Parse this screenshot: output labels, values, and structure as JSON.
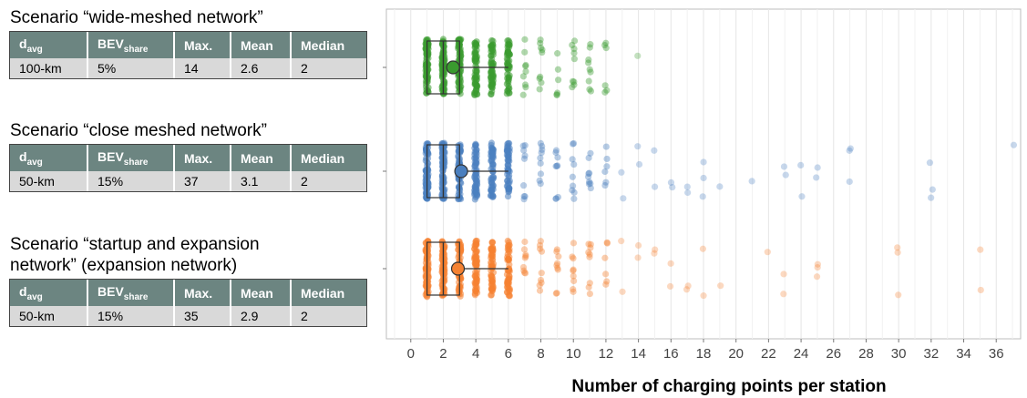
{
  "scenarios": [
    {
      "title": "Scenario “wide-meshed network”",
      "headers": {
        "d": "d",
        "d_sub": "avg",
        "bev": "BEV",
        "bev_sub": "share",
        "max": "Max.",
        "mean": "Mean",
        "median": "Median"
      },
      "row": {
        "d": "100-km",
        "bev": "5%",
        "max": "14",
        "mean": "2.6",
        "median": "2"
      }
    },
    {
      "title": "Scenario “close meshed network”",
      "headers": {
        "d": "d",
        "d_sub": "avg",
        "bev": "BEV",
        "bev_sub": "share",
        "max": "Max.",
        "mean": "Mean",
        "median": "Median"
      },
      "row": {
        "d": "50-km",
        "bev": "15%",
        "max": "37",
        "mean": "3.1",
        "median": "2"
      }
    },
    {
      "title": "Scenario “startup and expansion\nnetwork” (expansion network)",
      "headers": {
        "d": "d",
        "d_sub": "avg",
        "bev": "BEV",
        "bev_sub": "share",
        "max": "Max.",
        "mean": "Mean",
        "median": "Median"
      },
      "row": {
        "d": "50-km",
        "bev": "15%",
        "max": "35",
        "mean": "2.9",
        "median": "2"
      }
    }
  ],
  "chart_data": {
    "type": "scatter",
    "xlabel": "Number of charging points per station",
    "ylabel": "",
    "xlim": [
      -1.5,
      37.5
    ],
    "xticks": [
      0,
      2,
      4,
      6,
      8,
      10,
      12,
      14,
      16,
      18,
      20,
      22,
      24,
      26,
      28,
      30,
      32,
      34,
      36
    ],
    "grid": true,
    "series": [
      {
        "color": "#3a9a2f",
        "box": {
          "q1": 1,
          "median": 2,
          "q3": 3,
          "min": 1,
          "max": 6,
          "mean": 2.6
        },
        "points": [
          1,
          1,
          1,
          2,
          2,
          2,
          3,
          3,
          3,
          4,
          4,
          4,
          4,
          5,
          5,
          5,
          5,
          6,
          6,
          6,
          6,
          7,
          7,
          7,
          8,
          8,
          8,
          9,
          9,
          10,
          10,
          10,
          11,
          11,
          11,
          12,
          12,
          14
        ]
      },
      {
        "color": "#4a7fbf",
        "box": {
          "q1": 1,
          "median": 2,
          "q3": 3,
          "min": 1,
          "max": 6,
          "mean": 3.1
        },
        "points": [
          1,
          1,
          1,
          2,
          2,
          2,
          3,
          3,
          3,
          4,
          4,
          4,
          4,
          5,
          5,
          5,
          5,
          6,
          6,
          6,
          6,
          7,
          7,
          7,
          8,
          8,
          8,
          9,
          9,
          9,
          10,
          10,
          10,
          11,
          11,
          11,
          12,
          12,
          13,
          13,
          14,
          14,
          15,
          15,
          16,
          16,
          17,
          17,
          18,
          18,
          18,
          19,
          21,
          23,
          23,
          24,
          24,
          25,
          25,
          27,
          27,
          27,
          32,
          32,
          32,
          37
        ]
      },
      {
        "color": "#f58232",
        "box": {
          "q1": 1,
          "median": 2,
          "q3": 3,
          "min": 1,
          "max": 6,
          "mean": 2.9
        },
        "points": [
          1,
          1,
          1,
          2,
          2,
          2,
          3,
          3,
          3,
          4,
          4,
          4,
          4,
          5,
          5,
          5,
          5,
          6,
          6,
          6,
          6,
          7,
          7,
          7,
          8,
          8,
          8,
          9,
          9,
          9,
          10,
          10,
          10,
          11,
          11,
          11,
          12,
          12,
          13,
          13,
          14,
          14,
          15,
          15,
          16,
          16,
          17,
          17,
          18,
          18,
          19,
          22,
          23,
          23,
          25,
          25,
          25,
          30,
          30,
          30,
          35,
          35
        ]
      }
    ]
  }
}
